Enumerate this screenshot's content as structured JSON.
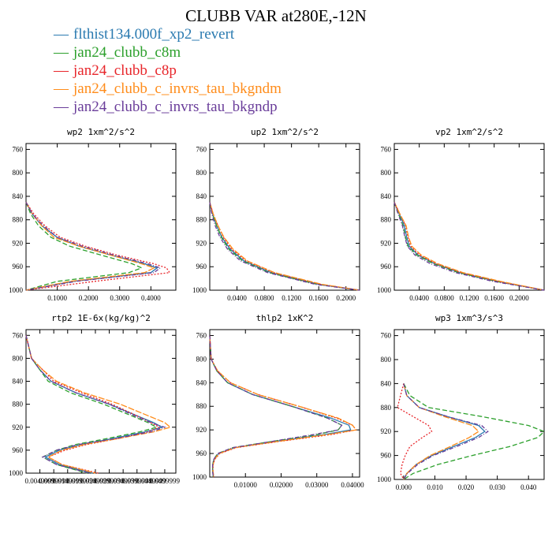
{
  "title": "CLUBB VAR at280E,-12N",
  "legend": [
    {
      "name": "flthist134.000f_xp2_revert",
      "color": "#2a7ab0"
    },
    {
      "name": "jan24_clubb_c8m",
      "color": "#2ca02c"
    },
    {
      "name": "jan24_clubb_c8p",
      "color": "#e8262b"
    },
    {
      "name": "jan24_clubb_c_invrs_tau_bkgndm",
      "color": "#ff8c1a"
    },
    {
      "name": "jan24_clubb_c_invrs_tau_bkgndp",
      "color": "#6a3d9a"
    }
  ],
  "chart_data": [
    {
      "type": "line",
      "title": "wp2  1xm^2/s^2",
      "ylim": [
        1000,
        750
      ],
      "xlim": [
        0,
        0.48
      ],
      "yticks": [
        "760",
        "800",
        "840",
        "880",
        "920",
        "960",
        "1000"
      ],
      "xticks": [
        "0.1000",
        "0.2000",
        "0.3000",
        "0.4000"
      ],
      "y": [
        850,
        870,
        890,
        910,
        925,
        940,
        955,
        962,
        970,
        985,
        1000
      ],
      "series": [
        {
          "name": "flthist134.000f_xp2_revert",
          "values": [
            0.0,
            0.02,
            0.05,
            0.1,
            0.17,
            0.27,
            0.38,
            0.42,
            0.4,
            0.15,
            0.0
          ]
        },
        {
          "name": "jan24_clubb_c8m",
          "values": [
            0.0,
            0.015,
            0.04,
            0.08,
            0.14,
            0.24,
            0.34,
            0.37,
            0.33,
            0.1,
            0.0
          ]
        },
        {
          "name": "jan24_clubb_c8p",
          "values": [
            0.0,
            0.025,
            0.06,
            0.11,
            0.19,
            0.29,
            0.41,
            0.45,
            0.46,
            0.22,
            0.0
          ]
        },
        {
          "name": "jan24_clubb_c_invrs_tau_bkgndm",
          "values": [
            0.0,
            0.02,
            0.05,
            0.09,
            0.17,
            0.27,
            0.37,
            0.41,
            0.38,
            0.14,
            0.0
          ]
        },
        {
          "name": "jan24_clubb_c_invrs_tau_bkgndp",
          "values": [
            0.0,
            0.02,
            0.055,
            0.1,
            0.18,
            0.28,
            0.39,
            0.43,
            0.41,
            0.16,
            0.0
          ]
        }
      ]
    },
    {
      "type": "line",
      "title": "up2  1xm^2/s^2",
      "ylim": [
        1000,
        750
      ],
      "xlim": [
        0,
        0.22
      ],
      "yticks": [
        "760",
        "800",
        "840",
        "880",
        "920",
        "960",
        "1000"
      ],
      "xticks": [
        "0.0400",
        "0.0800",
        "0.1200",
        "0.1600",
        "0.2000"
      ],
      "y": [
        850,
        870,
        890,
        910,
        930,
        950,
        970,
        990,
        1000
      ],
      "series": [
        {
          "name": "flthist134.000f_xp2_revert",
          "values": [
            0.0,
            0.004,
            0.01,
            0.018,
            0.03,
            0.05,
            0.09,
            0.16,
            0.22
          ]
        },
        {
          "name": "jan24_clubb_c8m",
          "values": [
            0.0,
            0.004,
            0.01,
            0.017,
            0.028,
            0.048,
            0.087,
            0.158,
            0.22
          ]
        },
        {
          "name": "jan24_clubb_c8p",
          "values": [
            0.0,
            0.005,
            0.012,
            0.02,
            0.032,
            0.053,
            0.093,
            0.163,
            0.22
          ]
        },
        {
          "name": "jan24_clubb_c_invrs_tau_bkgndm",
          "values": [
            0.0,
            0.005,
            0.012,
            0.021,
            0.034,
            0.055,
            0.095,
            0.165,
            0.22
          ]
        },
        {
          "name": "jan24_clubb_c_invrs_tau_bkgndp",
          "values": [
            0.0,
            0.003,
            0.008,
            0.015,
            0.026,
            0.045,
            0.085,
            0.155,
            0.22
          ]
        }
      ]
    },
    {
      "type": "line",
      "title": "vp2  1xm^2/s^2",
      "ylim": [
        1000,
        750
      ],
      "xlim": [
        0,
        0.24
      ],
      "yticks": [
        "760",
        "800",
        "840",
        "880",
        "920",
        "960",
        "1000"
      ],
      "xticks": [
        "0.0400",
        "0.0800",
        "0.1200",
        "0.1600",
        "0.2000"
      ],
      "y": [
        850,
        870,
        890,
        910,
        925,
        940,
        955,
        970,
        985,
        1000
      ],
      "series": [
        {
          "name": "flthist134.000f_xp2_revert",
          "values": [
            0.0,
            0.008,
            0.016,
            0.02,
            0.024,
            0.038,
            0.065,
            0.105,
            0.165,
            0.24
          ]
        },
        {
          "name": "jan24_clubb_c8m",
          "values": [
            0.0,
            0.007,
            0.014,
            0.018,
            0.022,
            0.036,
            0.063,
            0.103,
            0.163,
            0.24
          ]
        },
        {
          "name": "jan24_clubb_c8p",
          "values": [
            0.0,
            0.009,
            0.018,
            0.022,
            0.026,
            0.04,
            0.067,
            0.107,
            0.167,
            0.24
          ]
        },
        {
          "name": "jan24_clubb_c_invrs_tau_bkgndm",
          "values": [
            0.0,
            0.009,
            0.019,
            0.023,
            0.028,
            0.043,
            0.07,
            0.11,
            0.17,
            0.24
          ]
        },
        {
          "name": "jan24_clubb_c_invrs_tau_bkgndp",
          "values": [
            0.0,
            0.006,
            0.013,
            0.017,
            0.021,
            0.033,
            0.058,
            0.098,
            0.158,
            0.24
          ]
        }
      ]
    },
    {
      "type": "line",
      "title": "rtp2  1E-6x(kg/kg)^2",
      "ylim": [
        1000,
        750
      ],
      "xlim": [
        0,
        0.00054
      ],
      "yticks": [
        "760",
        "800",
        "840",
        "880",
        "920",
        "960",
        "1000"
      ],
      "xticks": [
        "0.0049999",
        "0.0099999",
        "0.0149999",
        "0.0199999",
        "0.0249999",
        "0.0299999",
        "0.0349999",
        "0.0399999",
        "0.0449999",
        "0.0499999"
      ],
      "y": [
        760,
        800,
        820,
        840,
        860,
        880,
        900,
        912,
        920,
        928,
        940,
        950,
        960,
        972,
        985,
        1000
      ],
      "series": [
        {
          "name": "flthist134.000f_xp2_revert",
          "values": [
            0.0,
            2e-05,
            5e-05,
            9e-05,
            0.00018,
            0.0003,
            0.0004,
            0.00046,
            0.00049,
            0.00043,
            0.00031,
            0.0002,
            0.00012,
            7e-05,
            0.00012,
            0.00024
          ]
        },
        {
          "name": "jan24_clubb_c8m",
          "values": [
            0.0,
            2e-05,
            5e-05,
            8e-05,
            0.00016,
            0.00028,
            0.00038,
            0.00044,
            0.00047,
            0.00041,
            0.00029,
            0.00018,
            0.00011,
            6e-05,
            0.00011,
            0.00022
          ]
        },
        {
          "name": "jan24_clubb_c8p",
          "values": [
            0.0,
            2e-05,
            6e-05,
            0.0001,
            0.0002,
            0.00031,
            0.0004,
            0.00045,
            0.00048,
            0.00044,
            0.00033,
            0.00022,
            0.00014,
            8e-05,
            0.00013,
            0.00026
          ]
        },
        {
          "name": "jan24_clubb_c_invrs_tau_bkgndm",
          "values": [
            0.0,
            2e-05,
            6e-05,
            0.00011,
            0.00021,
            0.00034,
            0.00044,
            0.0005,
            0.00052,
            0.00046,
            0.00033,
            0.00021,
            0.00013,
            8e-05,
            0.00013,
            0.00025
          ]
        },
        {
          "name": "jan24_clubb_c_invrs_tau_bkgndp",
          "values": [
            0.0,
            2e-05,
            5e-05,
            9e-05,
            0.00018,
            0.0003,
            0.00039,
            0.00045,
            0.0005,
            0.00045,
            0.00032,
            0.00019,
            0.00011,
            6e-05,
            0.00011,
            0.00023
          ]
        }
      ]
    },
    {
      "type": "line",
      "title": "thlp2  1xK^2",
      "ylim": [
        1000,
        750
      ],
      "xlim": [
        0,
        0.042
      ],
      "yticks": [
        "760",
        "800",
        "840",
        "880",
        "920",
        "960",
        "1000"
      ],
      "xticks": [
        "0.01000",
        "0.02000",
        "0.03000",
        "0.04000"
      ],
      "y": [
        760,
        800,
        820,
        840,
        860,
        880,
        900,
        912,
        920,
        928,
        940,
        950,
        960,
        970,
        980,
        990,
        1000
      ],
      "series": [
        {
          "name": "flthist134.000f_xp2_revert",
          "values": [
            0.0,
            0.0004,
            0.002,
            0.005,
            0.012,
            0.023,
            0.034,
            0.039,
            0.0395,
            0.032,
            0.018,
            0.007,
            0.0025,
            0.0012,
            0.0008,
            0.0008,
            0.001
          ]
        },
        {
          "name": "jan24_clubb_c8m",
          "values": [
            0.0,
            0.0004,
            0.002,
            0.005,
            0.012,
            0.023,
            0.033,
            0.037,
            0.036,
            0.03,
            0.017,
            0.0065,
            0.0022,
            0.0011,
            0.0008,
            0.0008,
            0.001
          ]
        },
        {
          "name": "jan24_clubb_c8p",
          "values": [
            0.0,
            0.0004,
            0.0022,
            0.0058,
            0.0135,
            0.025,
            0.0355,
            0.04,
            0.041,
            0.034,
            0.019,
            0.0075,
            0.0028,
            0.0014,
            0.0009,
            0.0009,
            0.0011
          ]
        },
        {
          "name": "jan24_clubb_c_invrs_tau_bkgndm",
          "values": [
            0.0,
            0.0004,
            0.0022,
            0.0058,
            0.0135,
            0.025,
            0.036,
            0.04,
            0.041,
            0.033,
            0.0185,
            0.0072,
            0.0026,
            0.0013,
            0.0009,
            0.0009,
            0.0011
          ]
        },
        {
          "name": "jan24_clubb_c_invrs_tau_bkgndp",
          "values": [
            0.0,
            0.0004,
            0.002,
            0.005,
            0.012,
            0.023,
            0.033,
            0.037,
            0.036,
            0.029,
            0.017,
            0.0065,
            0.0022,
            0.0011,
            0.0008,
            0.0008,
            0.001
          ]
        }
      ]
    },
    {
      "type": "line",
      "title": "wp3  1xm^3/s^3",
      "ylim": [
        1000,
        750
      ],
      "xlim": [
        -0.003,
        0.045
      ],
      "yticks": [
        "760",
        "800",
        "840",
        "880",
        "920",
        "960",
        "1000"
      ],
      "xticks": [
        "0.000",
        "0.010",
        "0.020",
        "0.030",
        "0.040"
      ],
      "y": [
        840,
        860,
        880,
        895,
        910,
        920,
        930,
        945,
        960,
        975,
        990,
        1000
      ],
      "series": [
        {
          "name": "flthist134.000f_xp2_revert",
          "values": [
            0.0,
            0.001,
            0.005,
            0.014,
            0.024,
            0.026,
            0.023,
            0.016,
            0.009,
            0.004,
            0.001,
            0.0
          ]
        },
        {
          "name": "jan24_clubb_c8m",
          "values": [
            0.0,
            0.002,
            0.008,
            0.025,
            0.04,
            0.045,
            0.043,
            0.034,
            0.022,
            0.011,
            0.003,
            0.0
          ]
        },
        {
          "name": "jan24_clubb_c8p",
          "values": [
            0.0,
            -0.001,
            -0.002,
            0.003,
            0.008,
            0.009,
            0.006,
            0.002,
            0.0005,
            -0.0005,
            -0.001,
            0.0
          ]
        },
        {
          "name": "jan24_clubb_c_invrs_tau_bkgndm",
          "values": [
            0.0,
            0.001,
            0.005,
            0.013,
            0.022,
            0.024,
            0.021,
            0.015,
            0.0085,
            0.004,
            0.001,
            0.0
          ]
        },
        {
          "name": "jan24_clubb_c_invrs_tau_bkgndp",
          "values": [
            0.0,
            0.001,
            0.005,
            0.014,
            0.025,
            0.027,
            0.024,
            0.017,
            0.0095,
            0.0045,
            0.0012,
            0.0
          ]
        }
      ]
    }
  ]
}
